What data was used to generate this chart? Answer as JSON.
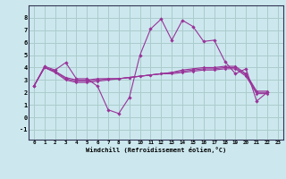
{
  "xlabel": "Windchill (Refroidissement éolien,°C)",
  "bg_color": "#cce8ee",
  "grid_color": "#aacccc",
  "line_color": "#993399",
  "xlim": [
    -0.5,
    23.5
  ],
  "ylim": [
    -1.8,
    9.0
  ],
  "yticks": [
    -1,
    0,
    1,
    2,
    3,
    4,
    5,
    6,
    7,
    8
  ],
  "xticks": [
    0,
    1,
    2,
    3,
    4,
    5,
    6,
    7,
    8,
    9,
    10,
    11,
    12,
    13,
    14,
    15,
    16,
    17,
    18,
    19,
    20,
    21,
    22,
    23
  ],
  "series": [
    [
      2.5,
      4.1,
      3.8,
      4.4,
      3.1,
      3.1,
      2.5,
      0.6,
      0.3,
      1.6,
      5.0,
      7.1,
      7.9,
      6.2,
      7.8,
      7.3,
      6.1,
      6.2,
      4.5,
      3.5,
      3.9,
      1.3,
      2.0
    ],
    [
      2.5,
      4.0,
      3.7,
      3.2,
      3.0,
      3.0,
      3.1,
      3.1,
      3.1,
      3.2,
      3.3,
      3.4,
      3.5,
      3.6,
      3.8,
      3.9,
      4.0,
      4.0,
      4.1,
      4.1,
      3.5,
      2.1,
      2.1
    ],
    [
      2.5,
      4.0,
      3.7,
      3.1,
      2.9,
      2.9,
      3.0,
      3.1,
      3.1,
      3.2,
      3.3,
      3.4,
      3.5,
      3.6,
      3.7,
      3.8,
      3.9,
      3.9,
      4.0,
      4.0,
      3.4,
      2.0,
      2.0
    ],
    [
      2.5,
      4.0,
      3.6,
      3.0,
      2.8,
      2.8,
      2.9,
      3.0,
      3.1,
      3.2,
      3.3,
      3.4,
      3.5,
      3.5,
      3.6,
      3.7,
      3.8,
      3.8,
      3.9,
      3.9,
      3.3,
      1.9,
      1.9
    ]
  ]
}
